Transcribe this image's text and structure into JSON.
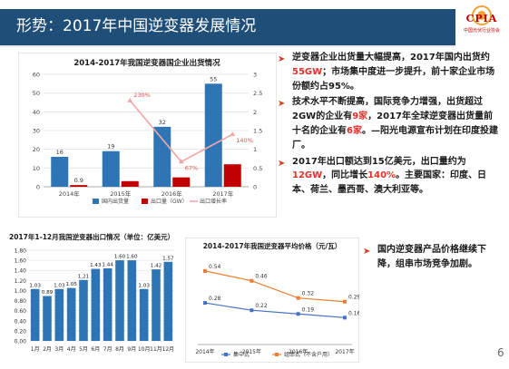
{
  "slide": {
    "title": "形势：2017年中国逆变器发展情况",
    "logo_text": "CPIA",
    "logo_subtitle": "中国光伏行业协会",
    "page_number": "6",
    "colors": {
      "title_bar": "#1f4e79",
      "bullet_arrow": "#d13f1d",
      "highlight": "#e0312a",
      "blue_bar": "#2e75b6",
      "red_bar": "#c00000",
      "line": "#f4a6a6"
    }
  },
  "bullets": [
    {
      "parts": [
        {
          "t": "逆变器企业出货量大幅提高，2017年国内出货约"
        },
        {
          "t": "55GW",
          "hl": true
        },
        {
          "t": "；市场集中度进一步提升，前十家企业市场份额约占95%。"
        }
      ]
    },
    {
      "parts": [
        {
          "t": "技术水平不断提高，国际竞争力增强，出货超过2GW的企业有"
        },
        {
          "t": "9家",
          "hl": true
        },
        {
          "t": "，2017年全球逆变器出货量前十名的企业有"
        },
        {
          "t": "6家",
          "hl": true
        },
        {
          "t": "。—阳光电源宣布计划在印度投建厂。"
        }
      ]
    },
    {
      "parts": [
        {
          "t": "2017年出口额达到15亿美元，出口量约为"
        },
        {
          "t": "12GW",
          "hl": true
        },
        {
          "t": "，同比增长"
        },
        {
          "t": "140%",
          "hl": true
        },
        {
          "t": "。主要国家：印度、日本、荷兰、墨西哥、澳大利亚等。"
        }
      ]
    }
  ],
  "side_bullet": {
    "parts": [
      {
        "t": "国内逆变器产品价格继续下降，组串市场竞争加剧。"
      }
    ]
  },
  "chart_data": [
    {
      "type": "bar",
      "title": "2014-2017年我国逆变器国企业出货情况",
      "categories": [
        "2014年",
        "2015年",
        "2016年",
        "2017年"
      ],
      "series": [
        {
          "name": "国内出货量",
          "kind": "bar",
          "axis": "left",
          "color": "#2e75b6",
          "values": [
            16,
            19,
            32,
            55
          ]
        },
        {
          "name": "出口量（GW）",
          "kind": "bar",
          "axis": "left",
          "color": "#c00000",
          "values": [
            0.9,
            3,
            5,
            12
          ]
        },
        {
          "name": "出口增长率",
          "kind": "line",
          "axis": "right",
          "color": "#f4a6a6",
          "values": [
            null,
            2.3,
            0.67,
            1.4
          ],
          "labels": [
            "",
            "230%",
            "67%",
            "140%"
          ]
        }
      ],
      "bar_labels": [
        [
          "16",
          "19",
          "32",
          "55"
        ],
        [
          "0.9",
          "",
          "",
          ""
        ]
      ],
      "ylim": [
        0,
        60
      ],
      "yticks": [
        0,
        10,
        20,
        30,
        40,
        50,
        60
      ],
      "y2lim": [
        0,
        3
      ],
      "y2ticks": [
        "0",
        "0.5",
        "1",
        "1.5",
        "2",
        "2.5",
        "3"
      ],
      "legend": "bottom",
      "grid": true
    },
    {
      "type": "bar",
      "title": "2017年1-12月我国逆变器出口情况（单位：亿美元）",
      "categories": [
        "1月",
        "2月",
        "3月",
        "4月",
        "5月",
        "6月",
        "7月",
        "8月",
        "9月",
        "10月",
        "11月",
        "12月"
      ],
      "values": [
        1.03,
        0.89,
        1.03,
        1.05,
        1.21,
        1.43,
        1.44,
        1.6,
        1.6,
        1.03,
        1.42,
        1.57
      ],
      "value_labels": [
        "1.03",
        "0.89",
        "1.03",
        "1.05",
        "1.21",
        "1.43",
        "1.44",
        "1.60",
        "1.60",
        "1.03",
        "1.42",
        "1.57"
      ],
      "ylim": [
        0,
        1.8
      ],
      "yticks": [
        "0.00",
        "0.20",
        "0.40",
        "0.60",
        "0.80",
        "1.00",
        "1.20",
        "1.40",
        "1.60",
        "1.80"
      ],
      "color": "#2e75b6",
      "grid": true
    },
    {
      "type": "line",
      "title": "2014-2017年我国逆变器平均价格（元/瓦）",
      "categories": [
        "2014年",
        "2015年",
        "2016年",
        "2017年"
      ],
      "series": [
        {
          "name": "集中式",
          "color": "#4472c4",
          "values": [
            0.28,
            0.22,
            0.19,
            0.16
          ],
          "labels": [
            "0.28",
            "0.22",
            "0.19",
            "0.16"
          ]
        },
        {
          "name": "组串式（不含户用）",
          "color": "#ed7d31",
          "values": [
            0.54,
            0.46,
            0.32,
            0.29
          ],
          "labels": [
            "0.54",
            "0.46",
            "0.32",
            "0.29"
          ]
        }
      ],
      "ylim": [
        0,
        0.65
      ],
      "legend": "bottom",
      "grid": false
    }
  ]
}
